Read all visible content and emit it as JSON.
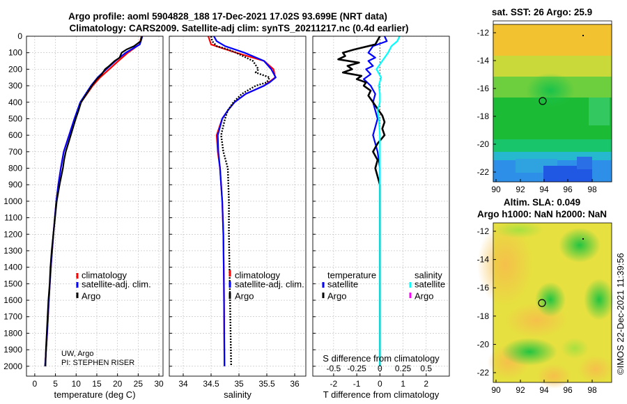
{
  "header": {
    "title1": "Argo profile: aoml 5904828_188 17-Dec-2021 17.02S 93.699E (NRT data)",
    "title2": "Climatology: CARS2009. Satellite-adj clim: synTS_20211217.nc (0.4d earlier)"
  },
  "colors": {
    "climatology": "#ff0000",
    "satellite": "#0000ff",
    "argo": "#000000",
    "sal_sat": "#00ffff",
    "sal_argo": "#ff00ff"
  },
  "chart_data": [
    {
      "type": "line",
      "name": "temperature",
      "xlabel": "temperature (deg C)",
      "xlim": [
        -2,
        31
      ],
      "xticks": [
        0,
        5,
        10,
        15,
        20,
        25,
        30
      ],
      "ylim": [
        0,
        2060
      ],
      "yticks": [
        0,
        100,
        200,
        300,
        400,
        500,
        600,
        700,
        800,
        900,
        1000,
        1100,
        1200,
        1300,
        1400,
        1500,
        1600,
        1700,
        1800,
        1900,
        2000
      ],
      "legend": [
        "climatology",
        "satellite-adj. clim.",
        "Argo"
      ],
      "note1": "UW, Argo",
      "note2": "PI: STEPHEN RISER",
      "series": [
        {
          "name": "climatology",
          "depth": [
            0,
            50,
            100,
            150,
            200,
            250,
            300,
            400,
            500,
            600,
            700,
            800,
            900,
            1000,
            1200,
            1400,
            1600,
            1800,
            2000
          ],
          "values": [
            25.8,
            25.3,
            22.5,
            20.2,
            18.0,
            15.8,
            14.0,
            11.2,
            9.6,
            8.3,
            7.0,
            6.3,
            5.7,
            5.2,
            4.5,
            3.9,
            3.4,
            3.0,
            2.5
          ]
        },
        {
          "name": "satellite",
          "depth": [
            0,
            50,
            100,
            150,
            200,
            250,
            300,
            400,
            500,
            600,
            700,
            800,
            900,
            1000,
            1200,
            1400,
            1600,
            1800,
            2000
          ],
          "values": [
            26.0,
            25.4,
            22.0,
            19.5,
            17.3,
            15.2,
            13.6,
            11.0,
            9.6,
            8.3,
            7.0,
            6.3,
            5.7,
            5.2,
            4.5,
            3.9,
            3.4,
            3.0,
            2.5
          ]
        },
        {
          "name": "Argo",
          "depth": [
            0,
            30,
            60,
            80,
            100,
            130,
            150,
            180,
            200,
            230,
            260,
            300,
            350,
            400,
            450,
            500,
            550,
            600,
            650,
            700,
            750,
            800,
            900,
            1000,
            1100,
            1200,
            1300,
            1400,
            1500,
            1600,
            1700,
            1800,
            1900,
            2000
          ],
          "values": [
            25.9,
            25.6,
            24.0,
            22.2,
            21.0,
            20.5,
            19.3,
            18.0,
            17.0,
            16.2,
            15.0,
            13.8,
            12.5,
            11.2,
            10.6,
            9.9,
            9.3,
            8.7,
            8.1,
            7.5,
            7.1,
            6.8,
            6.0,
            5.3,
            4.9,
            4.5,
            4.1,
            3.8,
            3.6,
            3.3,
            3.1,
            2.9,
            2.7,
            2.6
          ]
        }
      ]
    },
    {
      "type": "line",
      "name": "salinity",
      "xlabel": "salinity",
      "xlim": [
        33.75,
        36.2
      ],
      "xticks": [
        34,
        34.5,
        35,
        35.5,
        36
      ],
      "ylim": [
        0,
        2060
      ],
      "legend": [
        "climatology",
        "satellite-adj. clim.",
        "Argo"
      ],
      "series": [
        {
          "name": "climatology",
          "depth": [
            0,
            50,
            100,
            150,
            200,
            250,
            300,
            350,
            400,
            450,
            500,
            600,
            700,
            800,
            1000,
            1200,
            1500,
            2000
          ],
          "values": [
            34.45,
            34.5,
            34.95,
            35.45,
            35.62,
            35.65,
            35.45,
            35.12,
            34.92,
            34.8,
            34.7,
            34.6,
            34.62,
            34.66,
            34.7,
            34.72,
            34.73,
            34.74
          ]
        },
        {
          "name": "satellite",
          "depth": [
            0,
            30,
            60,
            100,
            150,
            200,
            250,
            280,
            300,
            350,
            400,
            450,
            500,
            600,
            700,
            800,
            1000,
            1200,
            1500,
            2000
          ],
          "values": [
            34.55,
            34.6,
            34.75,
            35.1,
            35.45,
            35.58,
            35.66,
            35.55,
            35.45,
            35.12,
            34.92,
            34.8,
            34.7,
            34.62,
            34.63,
            34.66,
            34.7,
            34.72,
            34.73,
            34.74
          ]
        },
        {
          "name": "Argo",
          "depth": [
            0,
            30,
            60,
            80,
            100,
            150,
            200,
            220,
            250,
            280,
            300,
            350,
            400,
            450,
            500,
            600,
            700,
            800,
            900,
            1000,
            1200,
            1400,
            1600,
            1800,
            2000
          ],
          "values": [
            34.5,
            34.52,
            34.6,
            34.8,
            34.95,
            35.25,
            35.35,
            35.3,
            35.55,
            35.5,
            35.3,
            35.05,
            34.9,
            34.8,
            34.75,
            34.68,
            34.72,
            34.8,
            34.81,
            34.82,
            34.82,
            34.83,
            34.84,
            34.85,
            34.86
          ]
        }
      ]
    },
    {
      "type": "line",
      "name": "difference",
      "xlabel": "T difference from climatology",
      "xlabel_top": "S difference from climatology",
      "xlim": [
        -2.9,
        3.0
      ],
      "xticks": [
        -2,
        -1,
        0,
        1,
        2
      ],
      "s_ticks": [
        "-0.5",
        "-0.25",
        "0",
        "0.25",
        "0.5"
      ],
      "s_tick_pos": [
        -2,
        -1,
        0,
        1,
        2
      ],
      "ylim": [
        0,
        2060
      ],
      "legend_t_title": "temperature",
      "legend_s_title": "salinity",
      "legend_t": [
        "satellite",
        "Argo"
      ],
      "legend_s": [
        "satellite",
        "Argo"
      ],
      "series": [
        {
          "name": "T satellite",
          "depth": [
            0,
            30,
            60,
            100,
            130,
            150,
            180,
            200,
            230,
            260,
            300,
            350,
            400,
            450,
            500,
            550,
            600,
            650,
            700,
            800,
            900,
            1000,
            1200,
            1500,
            2000
          ],
          "values": [
            0.2,
            0.3,
            -0.3,
            -0.5,
            -0.2,
            -0.5,
            -0.3,
            -0.6,
            -0.4,
            -0.7,
            -0.4,
            -0.2,
            -0.3,
            -0.2,
            -0.1,
            -0.2,
            -0.3,
            -0.2,
            -0.1,
            0.0,
            0.0,
            0.0,
            0.0,
            0.0,
            0.0
          ]
        },
        {
          "name": "T Argo",
          "depth": [
            0,
            50,
            80,
            100,
            120,
            140,
            160,
            180,
            200,
            220,
            240,
            260,
            280,
            300,
            330,
            360,
            400,
            440,
            480,
            520,
            560,
            600,
            650,
            700,
            750,
            800,
            900,
            1000,
            1200,
            1500,
            2000
          ],
          "values": [
            0.0,
            -0.2,
            -1.1,
            -1.6,
            -1.5,
            -1.8,
            -0.9,
            -1.4,
            -1.2,
            -1.6,
            -0.8,
            -1.0,
            -0.6,
            -0.7,
            -0.4,
            -0.5,
            -0.3,
            -0.1,
            0.1,
            0.2,
            0.1,
            0.2,
            -0.1,
            -0.3,
            -0.1,
            -0.2,
            0.0,
            0.0,
            0.0,
            0.0,
            0.0
          ]
        },
        {
          "name": "S satellite",
          "depth": [
            0,
            30,
            60,
            100,
            150,
            200,
            250,
            300,
            350,
            400,
            450,
            500,
            600,
            700,
            800,
            1000,
            1200,
            1500,
            2000
          ],
          "values": [
            0.85,
            0.75,
            0.5,
            0.35,
            0.1,
            -0.15,
            0.05,
            -0.05,
            0.0,
            0.0,
            -0.1,
            -0.05,
            0.0,
            0.0,
            0.0,
            0.0,
            0.0,
            0.0,
            0.0
          ]
        }
      ]
    }
  ],
  "map_sst": {
    "title": "sat. SST: 26 Argo: 25.9",
    "xticks": [
      "90",
      "92",
      "94",
      "96",
      "98"
    ],
    "yticks": [
      "-12",
      "-14",
      "-16",
      "-18",
      "-20",
      "-22"
    ]
  },
  "map_sla": {
    "title1": "Altim. SLA: 0.049",
    "title2": "Argo h1000: NaN h2000: NaN",
    "xticks": [
      "90",
      "92",
      "94",
      "96",
      "98"
    ],
    "yticks": [
      "-12",
      "-14",
      "-16",
      "-18",
      "-20",
      "-22"
    ]
  },
  "footer": {
    "stamp": "©IMOS 22-Dec-2021 11:39:56"
  }
}
